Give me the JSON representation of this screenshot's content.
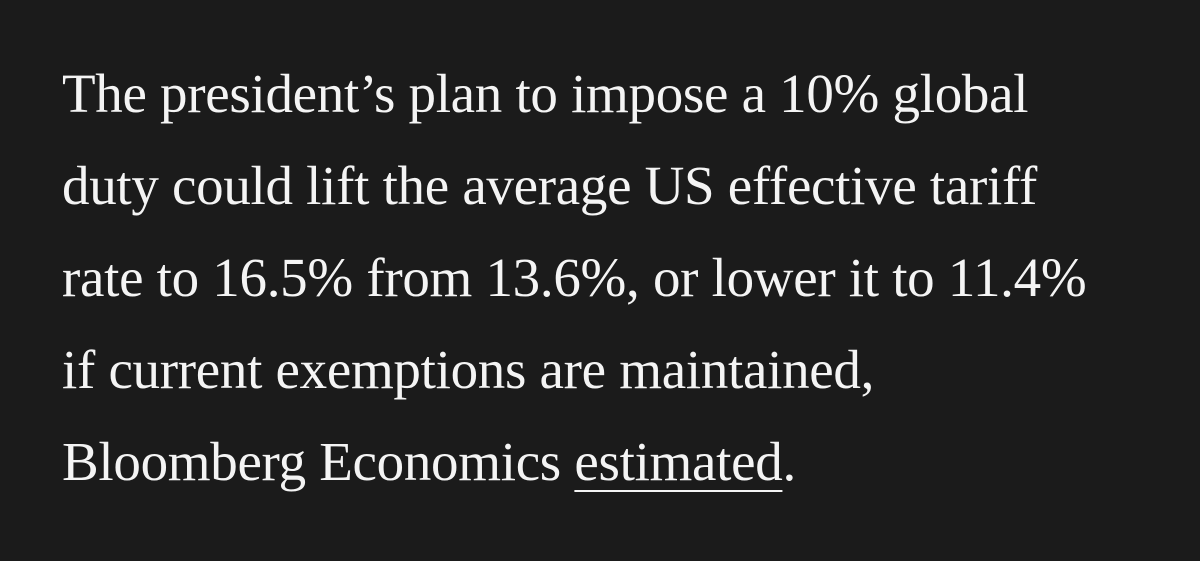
{
  "article": {
    "lines": [
      "The president’s plan to impose a 10% global",
      "duty could lift the average US effective tariff",
      "rate to 16.5% from 13.6%, or lower it to 11.4%",
      "if current exemptions are maintained,"
    ],
    "last_line_prefix": "Bloomberg Economics ",
    "link_text": "estimated",
    "last_line_suffix": "."
  },
  "colors": {
    "background": "#1b1b1b",
    "text": "#f4f4f4"
  }
}
